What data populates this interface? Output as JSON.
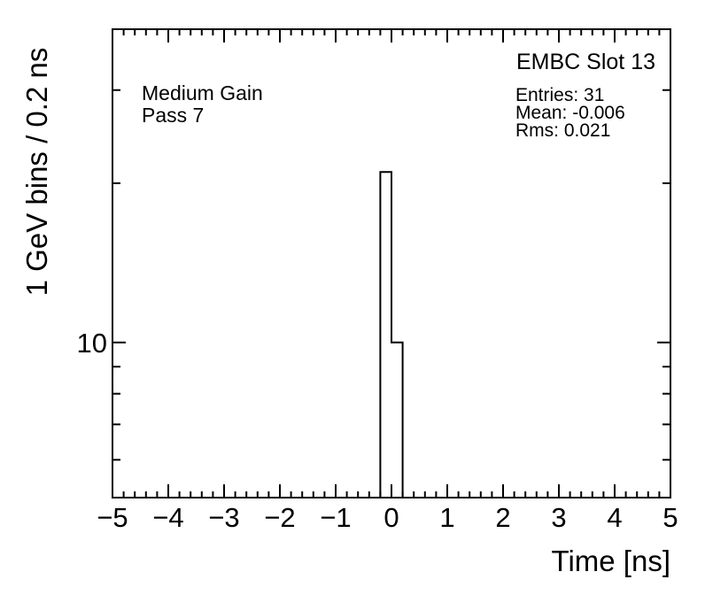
{
  "page": {
    "background_color": "#ffffff",
    "foreground_color": "#000000"
  },
  "chart_data": {
    "type": "bar",
    "subtype": "step-histogram",
    "title": "",
    "xlabel": "Time [ns]",
    "ylabel": "1 GeV bins / 0.2 ns",
    "line_color": "#000000",
    "grid": false,
    "legend": "none",
    "x_axis": {
      "min": -5,
      "max": 5,
      "major_tick_values": [
        -5,
        -4,
        -3,
        -2,
        -1,
        0,
        1,
        2,
        3,
        4,
        5
      ],
      "tick_labels": [
        "−5",
        "−4",
        "−3",
        "−2",
        "−1",
        "0",
        "1",
        "2",
        "3",
        "4",
        "5"
      ],
      "minor_tick_step": 0.2
    },
    "y_axis": {
      "scale": "log",
      "min": 5.09,
      "max": 39.1,
      "labeled_ticks": [
        {
          "value": 10,
          "label": "10"
        }
      ],
      "minor_tick_values": [
        6,
        7,
        8,
        9,
        20,
        30
      ]
    },
    "bin_width": 0.2,
    "bins": [
      {
        "x_low": -0.2,
        "x_high": 0.0,
        "count": 21
      },
      {
        "x_low": 0.0,
        "x_high": 0.2,
        "count": 10
      }
    ],
    "annotations": {
      "gain": "Medium Gain",
      "pass": "Pass 7",
      "slot": "EMBC Slot 13",
      "entries": "Entries: 31",
      "mean": "Mean: -0.006",
      "rms": "Rms: 0.021"
    }
  }
}
